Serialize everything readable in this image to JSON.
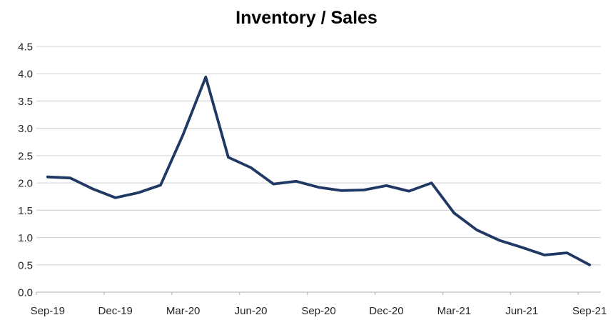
{
  "chart_data": {
    "type": "line",
    "title": "Inventory / Sales",
    "categories": [
      "Sep-19",
      "Oct-19",
      "Nov-19",
      "Dec-19",
      "Jan-20",
      "Feb-20",
      "Mar-20",
      "Apr-20",
      "May-20",
      "Jun-20",
      "Jul-20",
      "Aug-20",
      "Sep-20",
      "Oct-20",
      "Nov-20",
      "Dec-20",
      "Jan-21",
      "Feb-21",
      "Mar-21",
      "Apr-21",
      "May-21",
      "Jun-21",
      "Jul-21",
      "Aug-21",
      "Sep-21"
    ],
    "values": [
      2.11,
      2.09,
      1.89,
      1.73,
      1.82,
      1.96,
      2.89,
      3.94,
      2.47,
      2.28,
      1.98,
      2.03,
      1.92,
      1.86,
      1.87,
      1.95,
      1.85,
      2.0,
      1.45,
      1.14,
      0.95,
      0.82,
      0.68,
      0.72,
      0.5
    ],
    "x_tick_labels": [
      "Sep-19",
      "Dec-19",
      "Mar-20",
      "Jun-20",
      "Sep-20",
      "Dec-20",
      "Mar-21",
      "Jun-21",
      "Sep-21"
    ],
    "label_every": 3,
    "xlabel": "",
    "ylabel": "",
    "ylim": [
      0,
      4.5
    ],
    "y_tick_step": 0.5,
    "y_tick_labels": [
      "0.0",
      "0.5",
      "1.0",
      "1.5",
      "2.0",
      "2.5",
      "3.0",
      "3.5",
      "4.0",
      "4.5"
    ],
    "grid": true,
    "legend": false,
    "colors": {
      "line": "#203864",
      "gridline": "#D9D9D9",
      "axis": "#BFBFBF",
      "tick_label": "#262626",
      "title": "#000000",
      "background": "#FFFFFF"
    }
  }
}
